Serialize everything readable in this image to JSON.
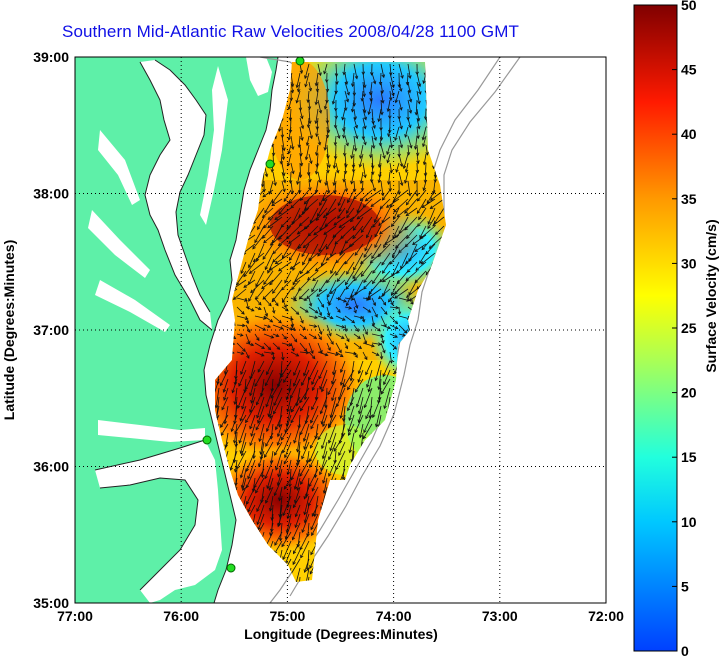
{
  "title": "Southern Mid-Atlantic Raw Velocities 2008/04/28 1100 GMT",
  "map": {
    "x_axis": {
      "label": "Longitude (Degrees:Minutes)",
      "ticks": [
        "77:00",
        "76:00",
        "75:00",
        "74:00",
        "73:00",
        "72:00"
      ]
    },
    "y_axis": {
      "label": "Latitude (Degrees:Minutes)",
      "ticks": [
        "39:00",
        "38:00",
        "37:00",
        "36:00",
        "35:00"
      ]
    },
    "grid": "dotted",
    "land_color": "#5ef0a8"
  },
  "colorbar": {
    "label": "Surface Velocity (cm/s)",
    "ticks": [
      "50",
      "45",
      "40",
      "35",
      "30",
      "25",
      "20",
      "15",
      "10",
      "5",
      "0"
    ],
    "min": 0,
    "max": 50,
    "colors": [
      "#0000ff",
      "#00ffff",
      "#ffff00",
      "#ff0000",
      "#800000"
    ]
  }
}
